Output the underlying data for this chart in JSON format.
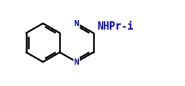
{
  "bg_color": "#ffffff",
  "line_color": "#000000",
  "n_color": "#0000cc",
  "label_color": "#0000cc",
  "label_text": "NHPr-i",
  "label_fontsize": 10.5,
  "label_fontfamily": "monospace",
  "label_fontweight": "bold"
}
